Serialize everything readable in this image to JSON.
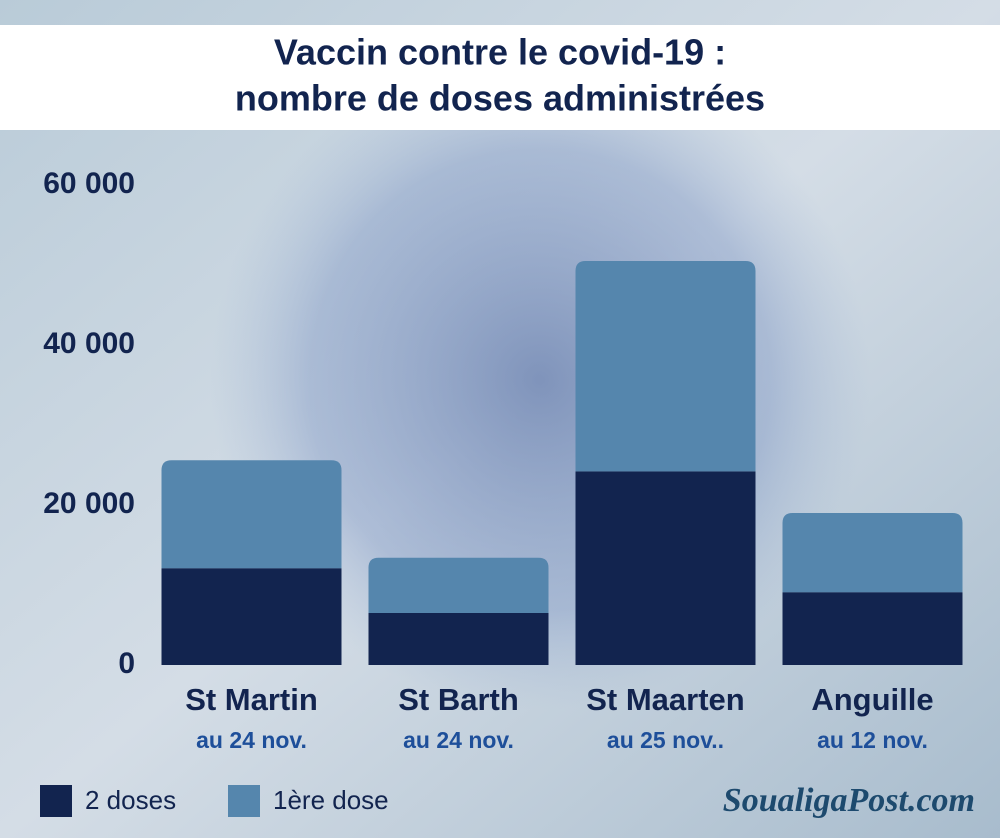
{
  "chart_data": {
    "type": "stacked_bar",
    "title": [
      "Vaccin contre le covid-19 :",
      "nombre de doses administrées"
    ],
    "categories": [
      "St Martin",
      "St Barth",
      "St Maarten",
      "Anguille"
    ],
    "category_notes": [
      "au 24 nov.",
      "au 24 nov.",
      "au 25 nov..",
      "au 12 nov."
    ],
    "series": [
      {
        "name": "2 doses",
        "color": "#12244f",
        "values": [
          12100,
          6500,
          24200,
          9100
        ]
      },
      {
        "name": "1ère dose",
        "color": "#5586ad",
        "values": [
          13500,
          6900,
          26300,
          9900
        ]
      }
    ],
    "ylim": [
      0,
      60000
    ],
    "yticks": [
      0,
      {
        "value": 20000,
        "label": "20 000"
      },
      {
        "value": 40000,
        "label": "40 000"
      },
      {
        "value": 60000,
        "label": "60 000"
      }
    ],
    "legend": "bottom-left",
    "source": "SoualigaPost.com"
  }
}
